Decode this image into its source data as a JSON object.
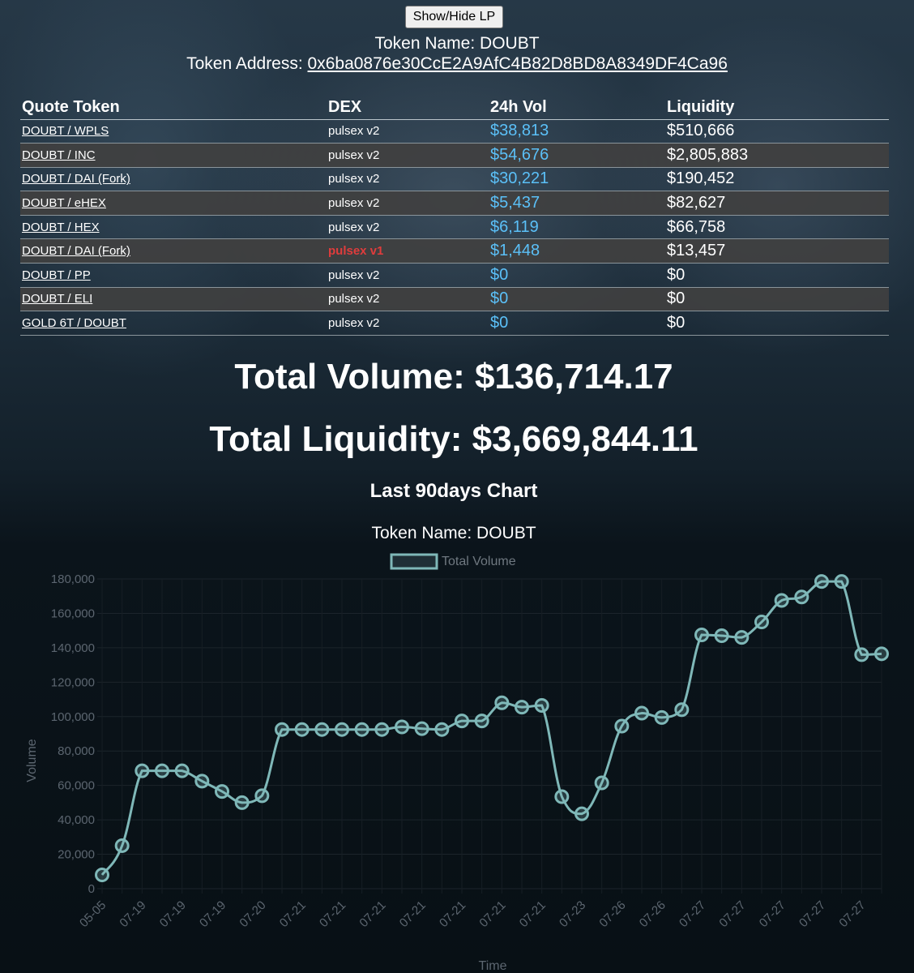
{
  "toggle_label": "Show/Hide LP",
  "token": {
    "name_label": "Token Name: DOUBT",
    "address_prefix": "Token Address: ",
    "address": "0x6ba0876e30CcE2A9AfC4B82D8BD8A8349DF4Ca96"
  },
  "table": {
    "headers": [
      "Quote Token",
      "DEX",
      "24h Vol",
      "Liquidity"
    ],
    "rows": [
      {
        "pair": "DOUBT / WPLS",
        "dex": "pulsex v2",
        "vol": "$38,813",
        "liq": "$510,666"
      },
      {
        "pair": "DOUBT / INC",
        "dex": "pulsex v2",
        "vol": "$54,676",
        "liq": "$2,805,883"
      },
      {
        "pair": "DOUBT / DAI (Fork)",
        "dex": "pulsex v2",
        "vol": "$30,221",
        "liq": "$190,452"
      },
      {
        "pair": "DOUBT / eHEX",
        "dex": "pulsex v2",
        "vol": "$5,437",
        "liq": "$82,627"
      },
      {
        "pair": "DOUBT / HEX",
        "dex": "pulsex v2",
        "vol": "$6,119",
        "liq": "$66,758"
      },
      {
        "pair": "DOUBT / DAI (Fork)",
        "dex": "pulsex v1",
        "vol": "$1,448",
        "liq": "$13,457"
      },
      {
        "pair": "DOUBT / PP",
        "dex": "pulsex v2",
        "vol": "$0",
        "liq": "$0"
      },
      {
        "pair": "DOUBT / ELI",
        "dex": "pulsex v2",
        "vol": "$0",
        "liq": "$0"
      },
      {
        "pair": "GOLD 6T / DOUBT",
        "dex": "pulsex v2",
        "vol": "$0",
        "liq": "$0"
      }
    ]
  },
  "totals": {
    "volume": "Total Volume: $136,714.17",
    "liquidity": "Total Liquidity: $3,669,844.11"
  },
  "chart_heading": "Last 90days Chart",
  "chart_subtitle": "Token Name: DOUBT",
  "colors": {
    "line": "#7fb8b8",
    "v1_dex": "#e03c3c",
    "volume_text": "#5bc0f8"
  },
  "chart_data": {
    "type": "line",
    "title": "Token Name: DOUBT",
    "xlabel": "Time",
    "ylabel": "Volume",
    "ylim": [
      0,
      180000
    ],
    "yticks": [
      0,
      20000,
      40000,
      60000,
      80000,
      100000,
      120000,
      140000,
      160000,
      180000
    ],
    "ytick_labels": [
      "0",
      "20,000",
      "40,000",
      "60,000",
      "80,000",
      "100,000",
      "120,000",
      "140,000",
      "160,000",
      "180,000"
    ],
    "x_tick_labels": [
      "05-05",
      "07-19",
      "07-19",
      "07-19",
      "07-20",
      "07-21",
      "07-21",
      "07-21",
      "07-21",
      "07-21",
      "07-21",
      "07-21",
      "07-23",
      "07-26",
      "07-26",
      "07-27",
      "07-27",
      "07-27",
      "07-27",
      "07-27"
    ],
    "legend": "top-center",
    "series": [
      {
        "name": "Total Volume",
        "values": [
          8000,
          25000,
          68500,
          68500,
          68500,
          62500,
          56500,
          50000,
          54000,
          92500,
          92500,
          92500,
          92500,
          92500,
          92500,
          94000,
          93000,
          92500,
          97500,
          97500,
          108000,
          105500,
          106500,
          53500,
          43500,
          61500,
          94500,
          102000,
          99500,
          104000,
          147500,
          147000,
          146000,
          155000,
          167500,
          169500,
          178500,
          178500,
          136000,
          136500
        ]
      }
    ]
  }
}
